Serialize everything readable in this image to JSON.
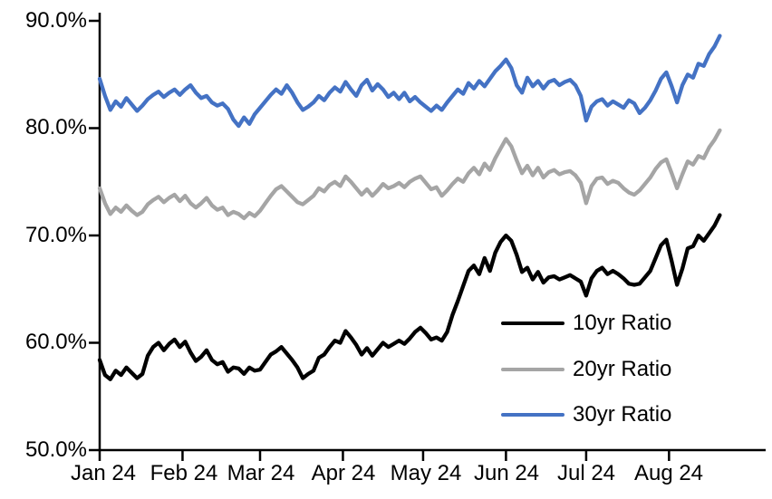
{
  "chart_data": {
    "type": "line",
    "title": "",
    "grid": false,
    "legend_position": "inside-right",
    "axis_color": "#000000",
    "ylim": [
      50,
      90
    ],
    "y_tick_values": [
      50,
      60,
      70,
      80,
      90
    ],
    "y_tick_labels": [
      "50.0%",
      "60.0%",
      "70.0%",
      "80.0%",
      "90.0%"
    ],
    "x_tick_labels": [
      "Jan 24",
      "Feb 24",
      "Mar 24",
      "Apr 24",
      "May 24",
      "Jun 24",
      "Jul 24",
      "Aug 24"
    ],
    "month_tick_days": [
      0,
      31,
      60,
      91,
      121,
      152,
      182,
      213
    ],
    "sample_interval_days": 2,
    "unit": "percent",
    "series": [
      {
        "name": "10yr Ratio",
        "color": "#000000",
        "values": [
          58.4,
          57.0,
          56.6,
          57.4,
          57.0,
          57.7,
          57.2,
          56.7,
          57.1,
          58.8,
          59.6,
          60.0,
          59.3,
          59.9,
          60.3,
          59.6,
          60.1,
          59.1,
          58.3,
          58.7,
          59.3,
          58.4,
          58.0,
          58.2,
          57.3,
          57.7,
          57.6,
          57.1,
          57.7,
          57.4,
          57.5,
          58.2,
          58.9,
          59.2,
          59.6,
          59.0,
          58.4,
          57.7,
          56.7,
          57.1,
          57.4,
          58.6,
          58.9,
          59.6,
          60.2,
          60.0,
          61.1,
          60.5,
          59.8,
          58.9,
          59.5,
          58.8,
          59.4,
          60.0,
          59.6,
          59.9,
          60.2,
          59.9,
          60.4,
          61.0,
          61.4,
          60.9,
          60.3,
          60.5,
          60.2,
          61.0,
          62.6,
          63.9,
          65.3,
          66.7,
          67.2,
          66.4,
          67.9,
          66.7,
          68.4,
          69.4,
          70.0,
          69.5,
          68.2,
          66.6,
          67.0,
          65.9,
          66.6,
          65.6,
          66.1,
          66.2,
          65.9,
          66.1,
          66.3,
          66.0,
          65.7,
          64.4,
          66.0,
          66.7,
          67.0,
          66.4,
          66.7,
          66.4,
          66.0,
          65.5,
          65.4,
          65.5,
          66.1,
          66.7,
          67.9,
          69.1,
          69.6,
          67.6,
          65.4,
          66.9,
          68.8,
          69.0,
          70.0,
          69.5,
          70.2,
          70.9,
          71.9
        ]
      },
      {
        "name": "20yr Ratio",
        "color": "#A5A5A5",
        "values": [
          74.4,
          73.0,
          72.0,
          72.6,
          72.2,
          72.8,
          72.3,
          71.9,
          72.2,
          72.9,
          73.3,
          73.6,
          73.1,
          73.5,
          73.8,
          73.2,
          73.7,
          73.0,
          72.6,
          73.0,
          73.5,
          72.8,
          72.4,
          72.6,
          71.9,
          72.2,
          72.0,
          71.6,
          72.1,
          71.8,
          72.3,
          73.0,
          73.7,
          74.3,
          74.6,
          74.1,
          73.6,
          73.1,
          72.9,
          73.3,
          73.7,
          74.4,
          74.1,
          74.7,
          75.0,
          74.6,
          75.5,
          75.0,
          74.4,
          73.8,
          74.3,
          73.7,
          74.2,
          74.8,
          74.4,
          74.6,
          74.9,
          74.5,
          75.0,
          75.3,
          75.5,
          74.9,
          74.3,
          74.5,
          73.7,
          74.2,
          74.8,
          75.3,
          75.0,
          75.8,
          76.3,
          75.7,
          76.7,
          76.1,
          77.2,
          78.1,
          79.0,
          78.3,
          77.0,
          75.8,
          76.5,
          75.6,
          76.3,
          75.4,
          75.9,
          76.1,
          75.7,
          75.9,
          76.0,
          75.6,
          74.9,
          73.0,
          74.6,
          75.3,
          75.4,
          74.8,
          75.1,
          74.9,
          74.4,
          74.0,
          73.8,
          74.2,
          74.8,
          75.4,
          76.2,
          76.8,
          77.1,
          75.8,
          74.4,
          75.7,
          76.9,
          76.6,
          77.4,
          77.2,
          78.2,
          78.9,
          79.8
        ]
      },
      {
        "name": "30yr Ratio",
        "color": "#4472C4",
        "values": [
          84.6,
          83.0,
          81.7,
          82.5,
          82.0,
          82.8,
          82.2,
          81.6,
          82.1,
          82.7,
          83.1,
          83.4,
          82.9,
          83.3,
          83.6,
          83.1,
          83.6,
          84.0,
          83.3,
          82.8,
          83.0,
          82.4,
          82.1,
          82.3,
          81.8,
          80.8,
          80.2,
          81.0,
          80.4,
          81.3,
          81.9,
          82.5,
          83.1,
          83.6,
          83.2,
          84.0,
          83.3,
          82.4,
          81.7,
          82.0,
          82.4,
          83.0,
          82.6,
          83.3,
          83.8,
          83.4,
          84.3,
          83.6,
          83.0,
          84.0,
          84.5,
          83.5,
          84.1,
          83.6,
          82.9,
          83.3,
          82.7,
          83.3,
          82.5,
          82.9,
          82.4,
          82.0,
          81.6,
          82.1,
          81.7,
          82.4,
          83.0,
          83.6,
          83.2,
          84.2,
          83.7,
          84.4,
          83.9,
          84.6,
          85.3,
          85.8,
          86.4,
          85.6,
          84.0,
          83.3,
          84.7,
          83.9,
          84.4,
          83.7,
          84.3,
          84.5,
          84.0,
          84.3,
          84.5,
          84.0,
          83.0,
          80.7,
          82.0,
          82.5,
          82.7,
          82.1,
          82.5,
          82.2,
          81.9,
          82.6,
          82.3,
          81.4,
          81.9,
          82.6,
          83.5,
          84.6,
          85.2,
          83.9,
          82.4,
          84.0,
          85.0,
          84.7,
          86.0,
          85.8,
          86.9,
          87.6,
          88.6
        ]
      }
    ]
  }
}
